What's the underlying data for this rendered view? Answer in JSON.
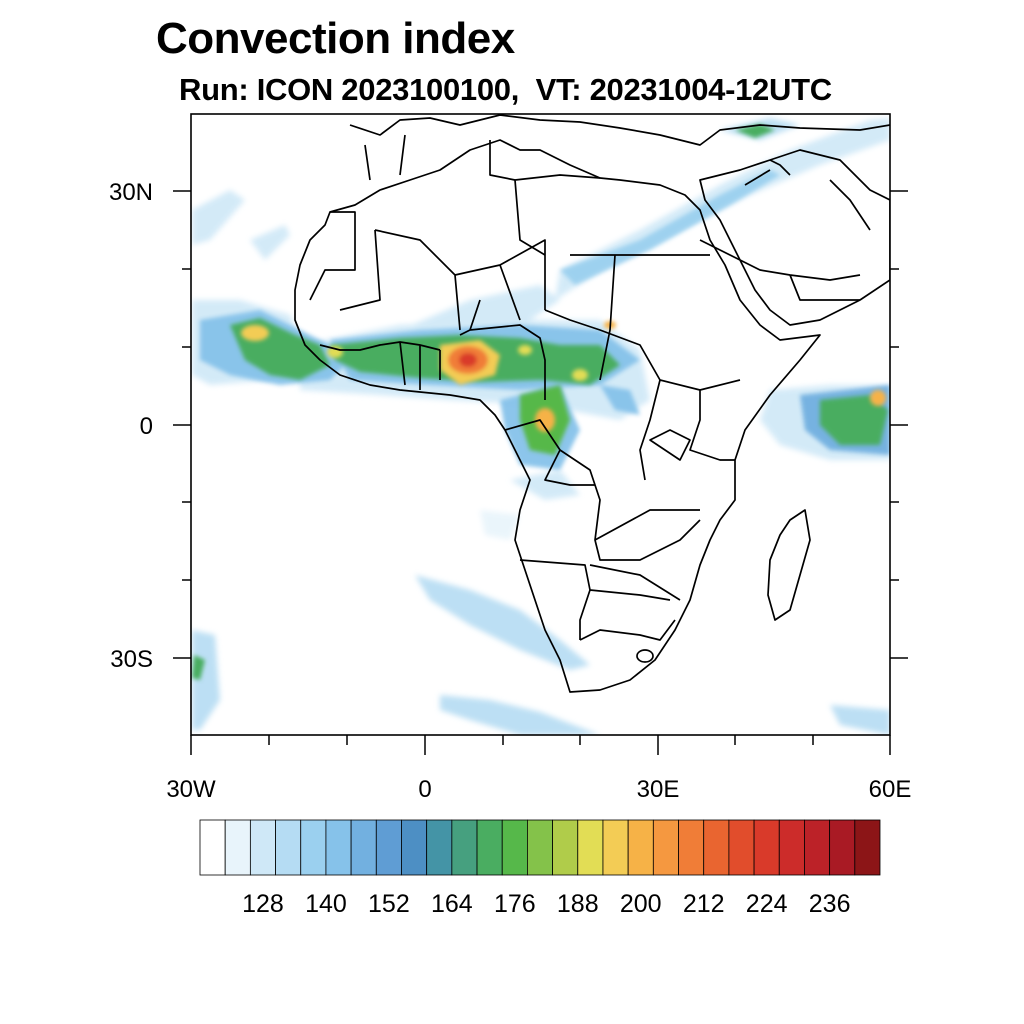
{
  "title": "Convection index",
  "subtitle": "Run: ICON 2023100100,  VT: 20231004-12UTC",
  "map": {
    "lon_range": [
      -30,
      60
    ],
    "lat_range": [
      -40,
      40
    ],
    "y_ticks": [
      {
        "lat": 30,
        "label": "30N"
      },
      {
        "lat": 0,
        "label": "0"
      },
      {
        "lat": -30,
        "label": "30S"
      }
    ],
    "x_ticks": [
      {
        "lon": -30,
        "label": "30W"
      },
      {
        "lon": 0,
        "label": "0"
      },
      {
        "lon": 30,
        "label": "30E"
      },
      {
        "lon": 60,
        "label": "60E"
      }
    ],
    "minor_tick_step_deg": 10
  },
  "colorbar": {
    "colors": [
      "#ffffff",
      "#e8f4fb",
      "#cfe8f7",
      "#b5dcf3",
      "#9bd0ef",
      "#86c2ea",
      "#72b0e0",
      "#5f9dd4",
      "#4d8fc4",
      "#4494a6",
      "#46a07f",
      "#4aad61",
      "#56b84a",
      "#84c24a",
      "#b0cc4a",
      "#e2dd55",
      "#f3cc55",
      "#f6b247",
      "#f59840",
      "#f07d37",
      "#e96530",
      "#e14d2c",
      "#d93a2a",
      "#cc2c2a",
      "#bc2228",
      "#a91a24",
      "#8c1517"
    ],
    "labels": [
      "128",
      "140",
      "152",
      "164",
      "176",
      "188",
      "200",
      "212",
      "224",
      "236"
    ]
  }
}
